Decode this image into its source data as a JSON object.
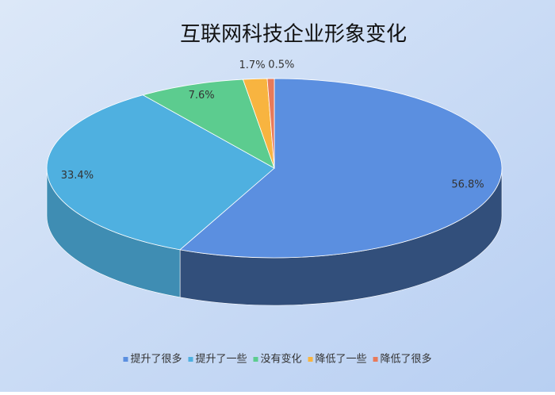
{
  "chart_data": {
    "type": "pie",
    "title": "互联网科技企业形象变化",
    "categories": [
      "提升了很多",
      "提升了一些",
      "没有变化",
      "降低了一些",
      "降低了很多"
    ],
    "values": [
      56.8,
      33.4,
      7.6,
      1.7,
      0.5
    ],
    "value_labels": [
      "56.8%",
      "33.4%",
      "7.6%",
      "1.7%",
      "0.5%"
    ],
    "colors": [
      "#5b8fe0",
      "#4fb0e0",
      "#5ccc8f",
      "#f8b440",
      "#e87a5a"
    ],
    "legend": "bottom"
  }
}
